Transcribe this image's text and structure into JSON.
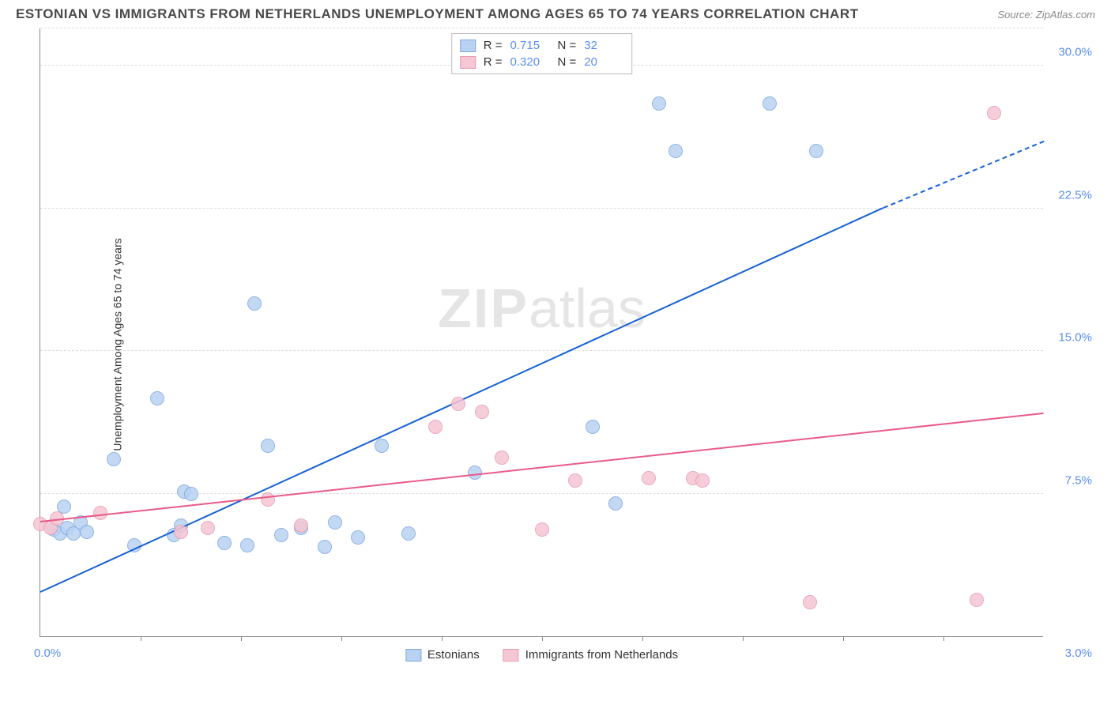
{
  "header": {
    "title": "ESTONIAN VS IMMIGRANTS FROM NETHERLANDS UNEMPLOYMENT AMONG AGES 65 TO 74 YEARS CORRELATION CHART",
    "source": "Source: ZipAtlas.com"
  },
  "watermark": {
    "zip": "ZIP",
    "atlas": "atlas"
  },
  "chart": {
    "type": "scatter",
    "yaxis_title": "Unemployment Among Ages 65 to 74 years",
    "xlim": [
      0.0,
      3.0
    ],
    "ylim": [
      0.0,
      32.0
    ],
    "xaxis_label_min": "0.0%",
    "xaxis_label_max": "3.0%",
    "ytick_values": [
      7.5,
      15.0,
      22.5,
      30.0
    ],
    "ytick_labels": [
      "7.5%",
      "15.0%",
      "22.5%",
      "30.0%"
    ],
    "xtick_marks": [
      0.3,
      0.6,
      0.9,
      1.2,
      1.5,
      1.8,
      2.1,
      2.4,
      2.7
    ],
    "grid_color": "#dddddd",
    "background_color": "#ffffff",
    "point_radius": 9,
    "series": [
      {
        "name": "Estonians",
        "fill": "#b9d2f2",
        "stroke": "#7ea9e0",
        "trend_color": "#1560d6",
        "R": "0.715",
        "N": "32",
        "trend": {
          "x1": 0.0,
          "y1": 2.3,
          "x2": 2.52,
          "y2": 22.5,
          "dash_x2": 3.0,
          "dash_y2": 26.0
        },
        "points": [
          [
            0.04,
            5.6
          ],
          [
            0.06,
            5.4
          ],
          [
            0.07,
            6.8
          ],
          [
            0.08,
            5.7
          ],
          [
            0.1,
            5.4
          ],
          [
            0.12,
            6.0
          ],
          [
            0.14,
            5.5
          ],
          [
            0.22,
            9.3
          ],
          [
            0.28,
            4.8
          ],
          [
            0.35,
            12.5
          ],
          [
            0.4,
            5.3
          ],
          [
            0.42,
            5.8
          ],
          [
            0.43,
            7.6
          ],
          [
            0.45,
            7.5
          ],
          [
            0.55,
            4.9
          ],
          [
            0.62,
            4.8
          ],
          [
            0.64,
            17.5
          ],
          [
            0.68,
            10.0
          ],
          [
            0.72,
            5.3
          ],
          [
            0.78,
            5.7
          ],
          [
            0.85,
            4.7
          ],
          [
            0.88,
            6.0
          ],
          [
            0.95,
            5.2
          ],
          [
            1.02,
            10.0
          ],
          [
            1.1,
            5.4
          ],
          [
            1.3,
            8.6
          ],
          [
            1.65,
            11.0
          ],
          [
            1.72,
            7.0
          ],
          [
            1.85,
            28.0
          ],
          [
            1.9,
            25.5
          ],
          [
            2.18,
            28.0
          ],
          [
            2.32,
            25.5
          ]
        ]
      },
      {
        "name": "Immigrants from Netherlands",
        "fill": "#f5c6d3",
        "stroke": "#e99ab1",
        "trend_color": "#e85a8a",
        "R": "0.320",
        "N": "20",
        "trend": {
          "x1": 0.0,
          "y1": 6.0,
          "x2": 3.0,
          "y2": 11.7
        },
        "points": [
          [
            0.0,
            5.9
          ],
          [
            0.03,
            5.7
          ],
          [
            0.05,
            6.2
          ],
          [
            0.18,
            6.5
          ],
          [
            0.42,
            5.5
          ],
          [
            0.5,
            5.7
          ],
          [
            0.68,
            7.2
          ],
          [
            0.78,
            5.8
          ],
          [
            1.18,
            11.0
          ],
          [
            1.25,
            12.2
          ],
          [
            1.32,
            11.8
          ],
          [
            1.38,
            9.4
          ],
          [
            1.5,
            5.6
          ],
          [
            1.6,
            8.2
          ],
          [
            1.82,
            8.3
          ],
          [
            1.95,
            8.3
          ],
          [
            1.98,
            8.2
          ],
          [
            2.3,
            1.8
          ],
          [
            2.8,
            1.9
          ],
          [
            2.85,
            27.5
          ]
        ]
      }
    ],
    "legend_top": {
      "r_label": "R =",
      "n_label": "N ="
    },
    "bottom_legend": {
      "series1": "Estonians",
      "series2": "Immigrants from Netherlands"
    }
  }
}
